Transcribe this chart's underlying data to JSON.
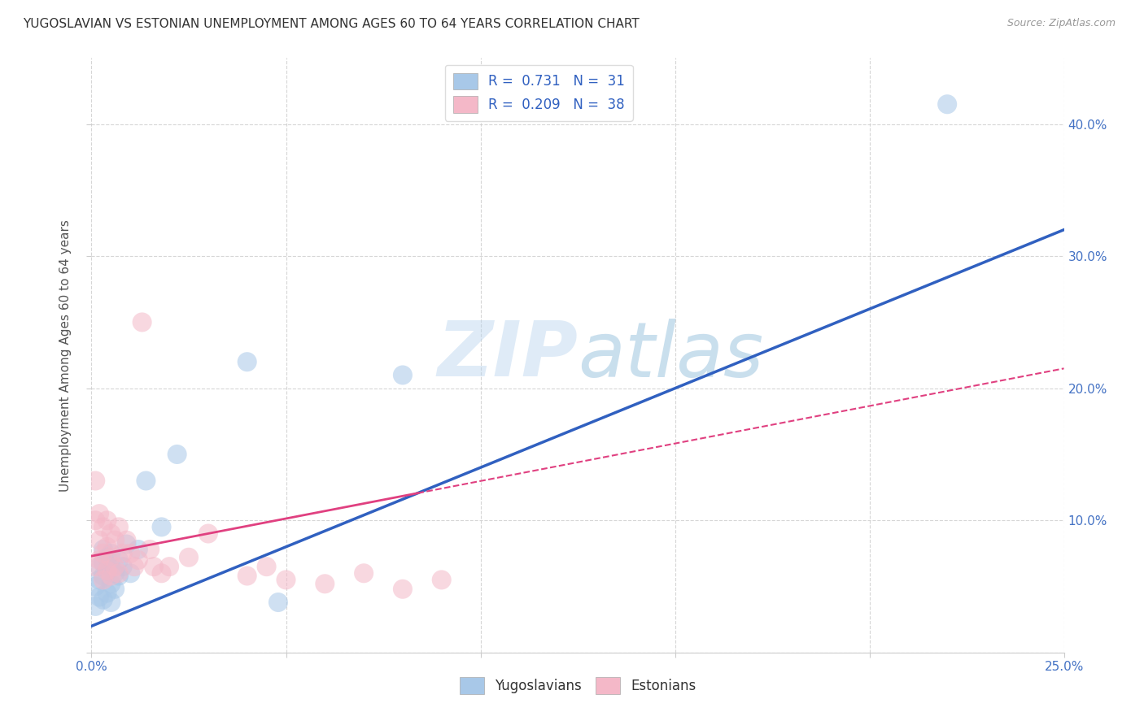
{
  "title": "YUGOSLAVIAN VS ESTONIAN UNEMPLOYMENT AMONG AGES 60 TO 64 YEARS CORRELATION CHART",
  "source": "Source: ZipAtlas.com",
  "ylabel": "Unemployment Among Ages 60 to 64 years",
  "xlim": [
    0.0,
    0.25
  ],
  "ylim": [
    0.0,
    0.45
  ],
  "x_ticks": [
    0.0,
    0.05,
    0.1,
    0.15,
    0.2,
    0.25
  ],
  "y_ticks": [
    0.0,
    0.1,
    0.2,
    0.3,
    0.4
  ],
  "blue_R": 0.731,
  "blue_N": 31,
  "pink_R": 0.209,
  "pink_N": 38,
  "blue_color": "#a8c8e8",
  "pink_color": "#f4b8c8",
  "blue_line_color": "#3060c0",
  "pink_line_color": "#e04080",
  "watermark_zip": "ZIP",
  "watermark_atlas": "atlas",
  "legend_labels": [
    "Yugoslavians",
    "Estonians"
  ],
  "blue_scatter_x": [
    0.001,
    0.001,
    0.002,
    0.002,
    0.002,
    0.003,
    0.003,
    0.003,
    0.003,
    0.004,
    0.004,
    0.004,
    0.005,
    0.005,
    0.005,
    0.005,
    0.006,
    0.006,
    0.007,
    0.007,
    0.008,
    0.009,
    0.01,
    0.012,
    0.014,
    0.018,
    0.022,
    0.04,
    0.048,
    0.08,
    0.22
  ],
  "blue_scatter_y": [
    0.035,
    0.05,
    0.042,
    0.055,
    0.065,
    0.04,
    0.058,
    0.068,
    0.078,
    0.045,
    0.062,
    0.072,
    0.038,
    0.052,
    0.065,
    0.075,
    0.048,
    0.06,
    0.058,
    0.07,
    0.065,
    0.082,
    0.06,
    0.078,
    0.13,
    0.095,
    0.15,
    0.22,
    0.038,
    0.21,
    0.415
  ],
  "pink_scatter_x": [
    0.001,
    0.001,
    0.001,
    0.002,
    0.002,
    0.002,
    0.003,
    0.003,
    0.003,
    0.004,
    0.004,
    0.004,
    0.005,
    0.005,
    0.005,
    0.006,
    0.006,
    0.007,
    0.007,
    0.008,
    0.009,
    0.01,
    0.011,
    0.012,
    0.013,
    0.015,
    0.016,
    0.018,
    0.02,
    0.025,
    0.03,
    0.04,
    0.045,
    0.05,
    0.06,
    0.07,
    0.08,
    0.09
  ],
  "pink_scatter_y": [
    0.065,
    0.1,
    0.13,
    0.07,
    0.085,
    0.105,
    0.055,
    0.075,
    0.095,
    0.062,
    0.08,
    0.1,
    0.058,
    0.072,
    0.09,
    0.065,
    0.085,
    0.06,
    0.095,
    0.075,
    0.085,
    0.075,
    0.065,
    0.07,
    0.25,
    0.078,
    0.065,
    0.06,
    0.065,
    0.072,
    0.09,
    0.058,
    0.065,
    0.055,
    0.052,
    0.06,
    0.048,
    0.055
  ],
  "blue_line_x0": 0.0,
  "blue_line_y0": 0.02,
  "blue_line_x1": 0.25,
  "blue_line_y1": 0.32,
  "pink_line_x0": 0.0,
  "pink_line_y0": 0.073,
  "pink_line_x1": 0.25,
  "pink_line_y1": 0.215,
  "background_color": "#ffffff",
  "grid_color": "#cccccc",
  "tick_color": "#4472c4",
  "title_fontsize": 11,
  "axis_label_fontsize": 11,
  "tick_fontsize": 11
}
